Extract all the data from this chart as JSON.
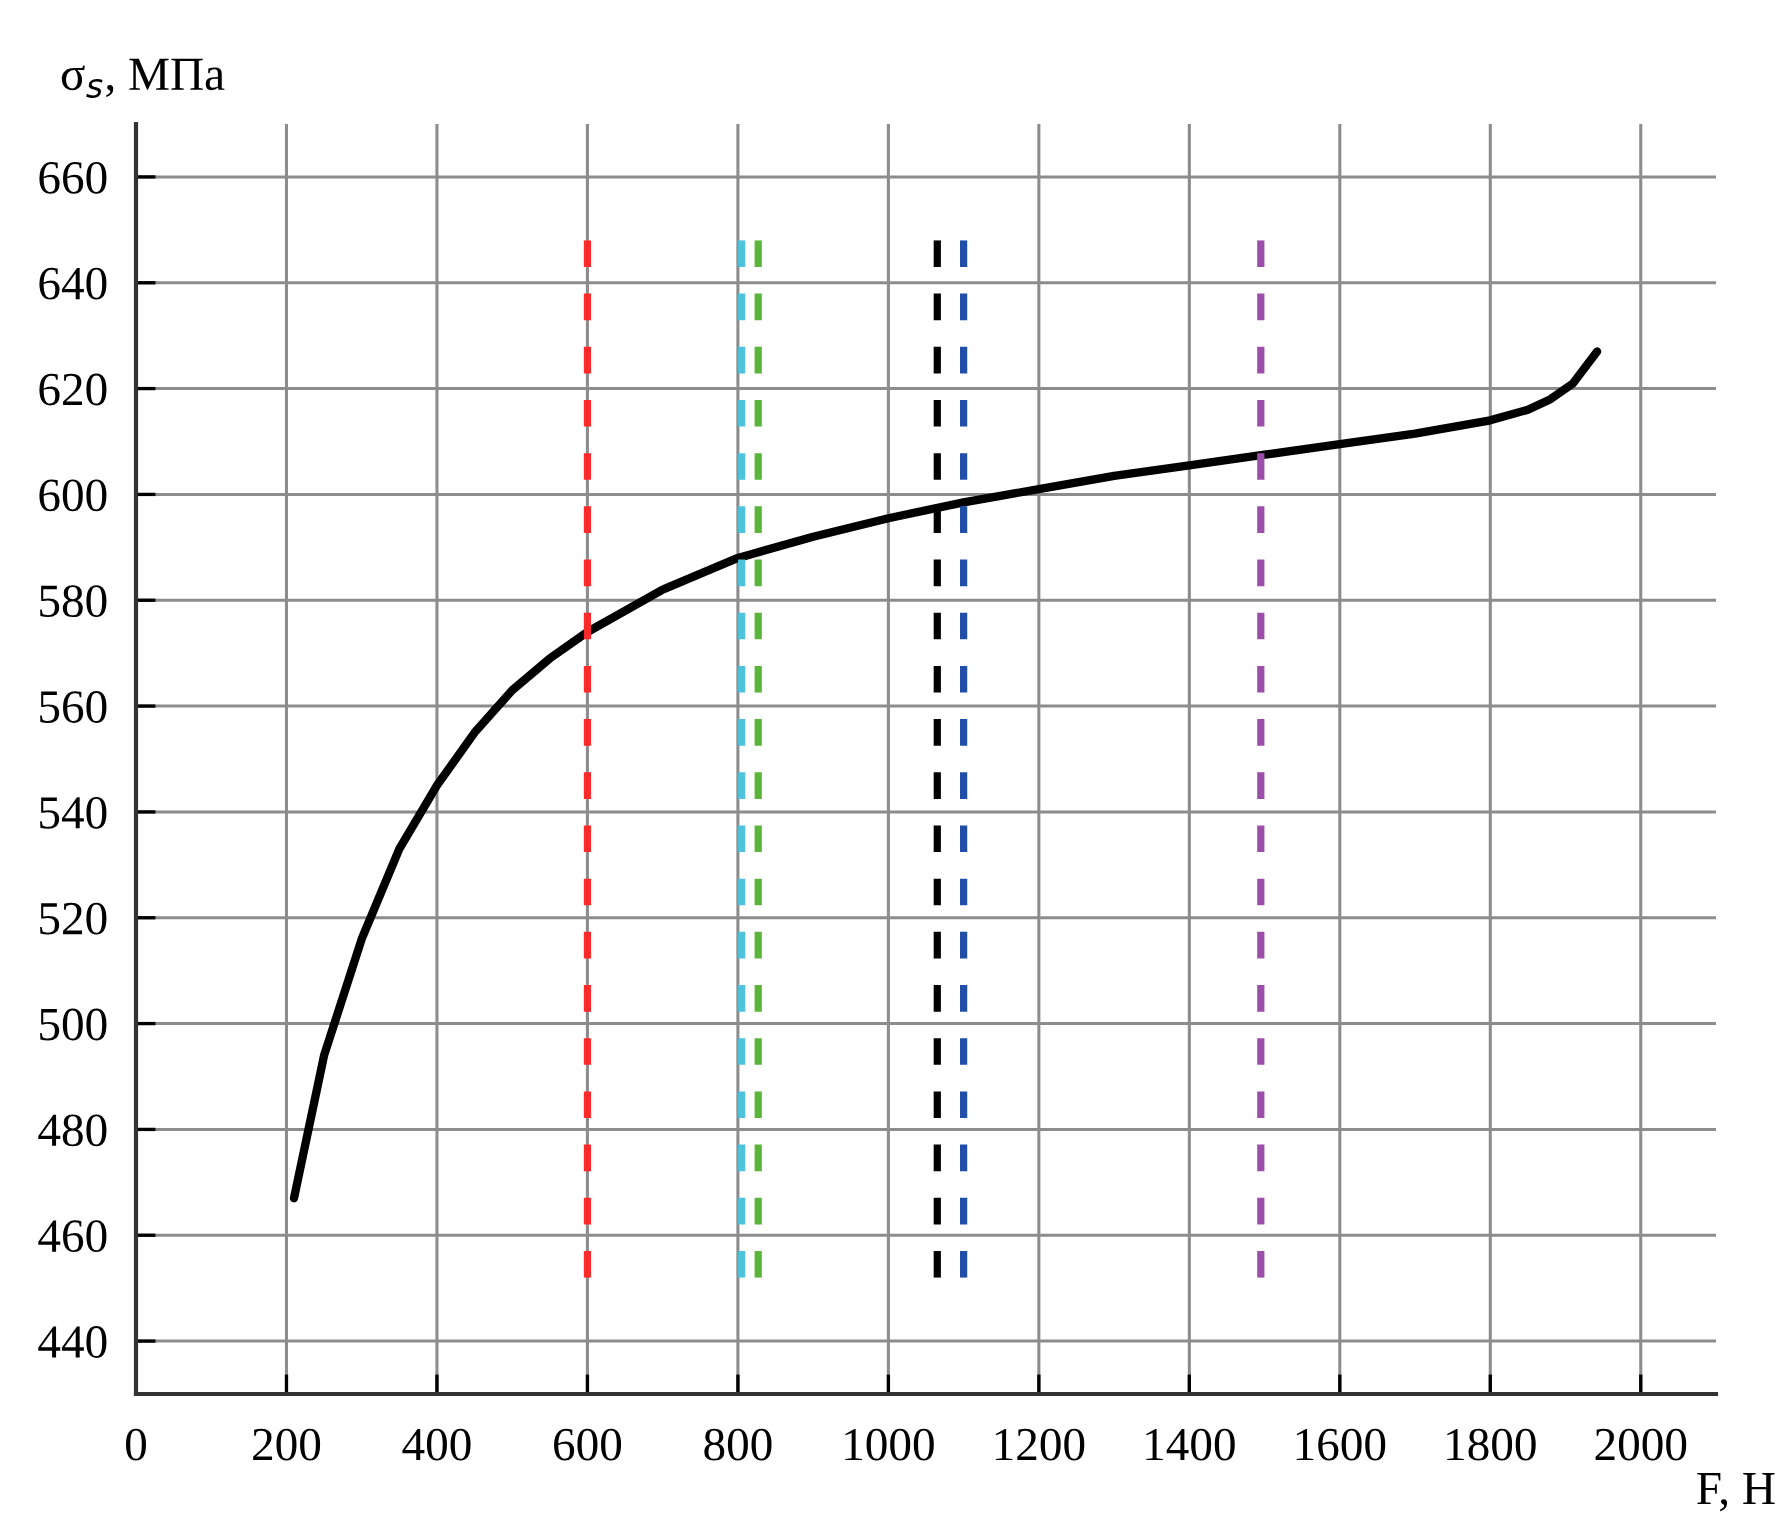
{
  "chart_data": {
    "type": "line",
    "ylabel": "σ$_{s}$, МПа",
    "xlabel": "F, Н",
    "xlim": [
      0,
      2100
    ],
    "ylim": [
      430,
      670
    ],
    "xticks": [
      0,
      200,
      400,
      600,
      800,
      1000,
      1200,
      1400,
      1600,
      1800,
      2000
    ],
    "yticks": [
      440,
      460,
      480,
      500,
      520,
      540,
      560,
      580,
      600,
      620,
      640,
      660
    ],
    "grid": true,
    "legend": false,
    "series": [
      {
        "color": "#000000",
        "line_style": "solid",
        "x": [
          210,
          250,
          300,
          350,
          400,
          450,
          500,
          550,
          600,
          700,
          800,
          900,
          1000,
          1100,
          1200,
          1300,
          1400,
          1500,
          1600,
          1700,
          1800,
          1850,
          1880,
          1910,
          1942
        ],
        "values": [
          467,
          494,
          516,
          533,
          545,
          555,
          563,
          569,
          574,
          582,
          588,
          592,
          595.5,
          598.5,
          601,
          603.5,
          605.5,
          607.5,
          609.5,
          611.5,
          614,
          616,
          618,
          621,
          627
        ]
      },
      {
        "color": "#ff2a2a",
        "line_style": "dashed",
        "x": [
          600,
          600
        ],
        "values": [
          452,
          648
        ]
      },
      {
        "color": "#4fc3dc",
        "line_style": "dashed",
        "x": [
          805,
          805
        ],
        "values": [
          452,
          648
        ]
      },
      {
        "color": "#5bb53b",
        "line_style": "dashed",
        "x": [
          827,
          827
        ],
        "values": [
          452,
          648
        ]
      },
      {
        "color": "#000000",
        "line_style": "dashed",
        "x": [
          1065,
          1065
        ],
        "values": [
          452,
          648
        ]
      },
      {
        "color": "#1f4fa8",
        "line_style": "dashed",
        "x": [
          1100,
          1100
        ],
        "values": [
          452,
          648
        ]
      },
      {
        "color": "#9b4fa8",
        "line_style": "dashed",
        "x": [
          1495,
          1495
        ],
        "values": [
          452,
          648
        ]
      }
    ]
  }
}
